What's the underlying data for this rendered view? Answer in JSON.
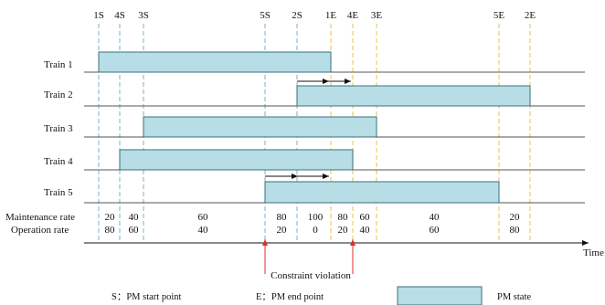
{
  "event_labels": {
    "s1": "1S",
    "s4": "4S",
    "s3": "3S",
    "s5": "5S",
    "s2": "2S",
    "e1": "1E",
    "e4": "4E",
    "e3": "3E",
    "e5": "5E",
    "e2": "2E"
  },
  "trains": [
    {
      "label": "Train 1",
      "start": "1S",
      "end": "1E"
    },
    {
      "label": "Train 2",
      "start": "2S",
      "end": "2E"
    },
    {
      "label": "Train 3",
      "start": "3S",
      "end": "3E"
    },
    {
      "label": "Train 4",
      "start": "4S",
      "end": "4E"
    },
    {
      "label": "Train 5",
      "start": "5S",
      "end": "5E"
    }
  ],
  "rates": {
    "maintenance_label": "Maintenance rate",
    "operation_label": "Operation rate",
    "maintenance": [
      "20",
      "40",
      "60",
      "80",
      "100",
      "80",
      "60",
      "40",
      "20"
    ],
    "operation": [
      "80",
      "60",
      "40",
      "20",
      "0",
      "20",
      "40",
      "60",
      "80"
    ]
  },
  "time_label": "Time",
  "annotation": "Constraint violation",
  "legend": {
    "start": "S：PM start point",
    "end": "E：PM end point",
    "state": "PM state"
  },
  "colors": {
    "pm_fill": "#b7dde6",
    "pm_stroke": "#3a6f7d",
    "start_line": "#6fb7c8",
    "end_line": "#f2c04a",
    "violation": "#d9302b",
    "axis": "#111111"
  }
}
